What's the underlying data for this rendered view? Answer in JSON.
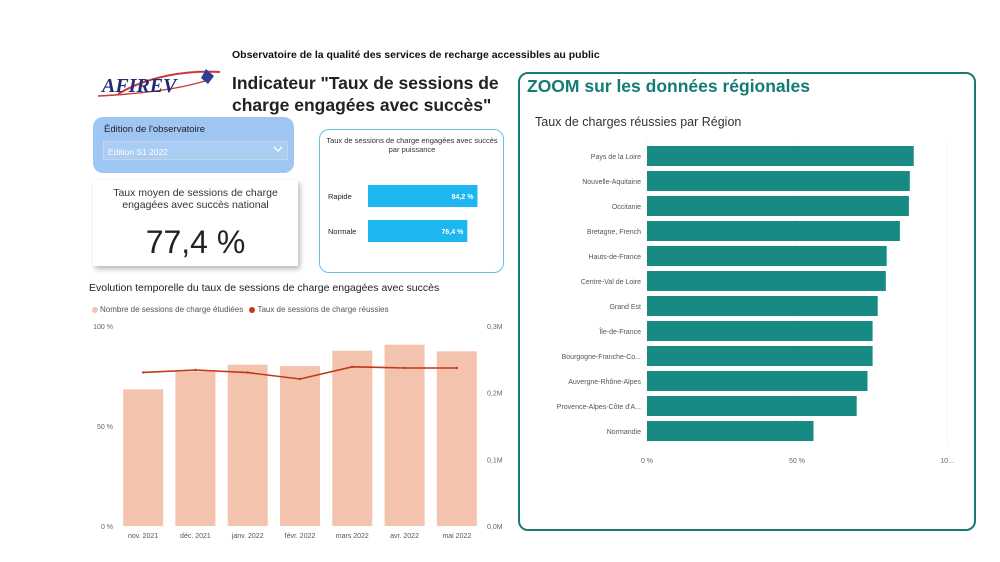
{
  "header": {
    "topline": "Observatoire de la qualité des services de recharge accessibles au public",
    "logo_text": "AFIREV",
    "title": "Indicateur \"Taux de sessions de charge engagées avec succès\""
  },
  "edition_filter": {
    "label": "Édition de l'observatoire",
    "value": "Edition S1 2022",
    "icon": "chevron-down-icon"
  },
  "kpi": {
    "title": "Taux moyen de sessions de charge engagées avec succès national",
    "value": "77,4 %"
  },
  "colors": {
    "power_bar": "#1eb6f0",
    "evo_bar": "#f4c3ad",
    "evo_line": "#c0391b",
    "region_bar": "#178a84",
    "region_accent": "#1c7a72"
  },
  "power_chart": {
    "title": "Taux de sessions de charge engagées avec succès par puissance",
    "chart_data": {
      "type": "bar",
      "orientation": "horizontal",
      "categories": [
        "Rapide",
        "Normale"
      ],
      "values": [
        84.2,
        76.4
      ],
      "data_labels": [
        "84,2 %",
        "76,4 %"
      ],
      "title": "Taux de sessions de charge engagées avec succès par puissance",
      "xlim": [
        0,
        100
      ]
    }
  },
  "evolution_chart": {
    "title": "Evolution temporelle du taux de sessions de charge engagées avec succès",
    "legend": [
      "Nombre de sessions de charge étudiées",
      "Taux de sessions de charge réussies"
    ],
    "chart_data": {
      "type": "bar",
      "categories": [
        "nov. 2021",
        "déc. 2021",
        "janv. 2022",
        "févr. 2022",
        "mars 2022",
        "avr. 2022",
        "mai 2022"
      ],
      "series": [
        {
          "name": "Nombre de sessions de charge étudiées",
          "type": "bar",
          "axis": "right",
          "values": [
            0.205,
            0.232,
            0.242,
            0.24,
            0.263,
            0.272,
            0.262
          ]
        },
        {
          "name": "Taux de sessions de charge réussies",
          "type": "line",
          "axis": "left",
          "values": [
            76.8,
            78.0,
            76.7,
            73.5,
            79.6,
            79.0,
            79.0
          ]
        }
      ],
      "y_left": {
        "ticks": [
          "0 %",
          "50 %",
          "100 %"
        ],
        "range": [
          0,
          100
        ]
      },
      "y_right": {
        "ticks": [
          "0,0M",
          "0,1M",
          "0,2M",
          "0,3M"
        ],
        "range": [
          0,
          0.3
        ]
      },
      "legend_position": "top-left"
    }
  },
  "regional": {
    "title": "ZOOM sur les données régionales",
    "chart": {
      "title": "Taux de charges réussies par Région",
      "chart_data": {
        "type": "bar",
        "orientation": "horizontal",
        "categories": [
          "Pays de la Loire",
          "Nouvelle-Aquitaine",
          "Occitanie",
          "Bretagne, French",
          "Hauts-de-France",
          "Centre-Val de Loire",
          "Grand Est",
          "Île-de-France",
          "Bourgogne-Franche-Co...",
          "Auvergne-Rhône-Alpes",
          "Provence-Alpes-Côte d'A...",
          "Normandie"
        ],
        "values": [
          88.9,
          87.6,
          87.3,
          84.3,
          79.9,
          79.6,
          76.9,
          75.2,
          75.2,
          73.5,
          69.9,
          55.5
        ],
        "title": "Taux de charges réussies par Région",
        "x_ticks": [
          "0 %",
          "50 %",
          "10..."
        ],
        "xlim": [
          0,
          100
        ]
      }
    }
  }
}
